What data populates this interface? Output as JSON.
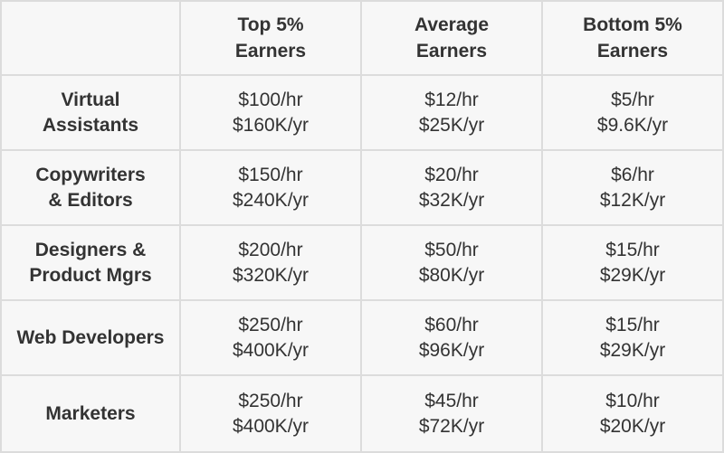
{
  "table": {
    "columns": [
      {
        "line1": "Top 5%",
        "line2": "Earners"
      },
      {
        "line1": "Average",
        "line2": "Earners"
      },
      {
        "line1": "Bottom 5%",
        "line2": "Earners"
      }
    ],
    "rows": [
      {
        "label1": "Virtual",
        "label2": "Assistants",
        "cells": [
          {
            "hourly": "$100/hr",
            "yearly": "$160K/yr"
          },
          {
            "hourly": "$12/hr",
            "yearly": "$25K/yr"
          },
          {
            "hourly": "$5/hr",
            "yearly": "$9.6K/yr"
          }
        ]
      },
      {
        "label1": "Copywriters",
        "label2": "& Editors",
        "cells": [
          {
            "hourly": "$150/hr",
            "yearly": "$240K/yr"
          },
          {
            "hourly": "$20/hr",
            "yearly": "$32K/yr"
          },
          {
            "hourly": "$6/hr",
            "yearly": "$12K/yr"
          }
        ]
      },
      {
        "label1": "Designers &",
        "label2": "Product Mgrs",
        "cells": [
          {
            "hourly": "$200/hr",
            "yearly": "$320K/yr"
          },
          {
            "hourly": "$50/hr",
            "yearly": "$80K/yr"
          },
          {
            "hourly": "$15/hr",
            "yearly": "$29K/yr"
          }
        ]
      },
      {
        "label1": "Web Developers",
        "label2": "",
        "cells": [
          {
            "hourly": "$250/hr",
            "yearly": "$400K/yr"
          },
          {
            "hourly": "$60/hr",
            "yearly": "$96K/yr"
          },
          {
            "hourly": "$15/hr",
            "yearly": "$29K/yr"
          }
        ]
      },
      {
        "label1": "Marketers",
        "label2": "",
        "cells": [
          {
            "hourly": "$250/hr",
            "yearly": "$400K/yr"
          },
          {
            "hourly": "$45/hr",
            "yearly": "$72K/yr"
          },
          {
            "hourly": "$10/hr",
            "yearly": "$20K/yr"
          }
        ]
      }
    ]
  }
}
